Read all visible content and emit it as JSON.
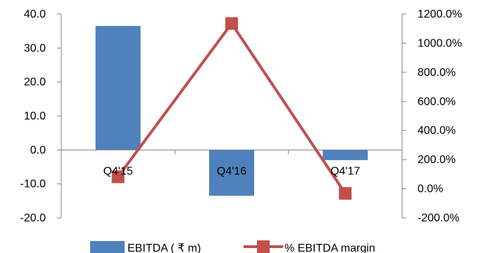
{
  "chart_data": {
    "type": "bar",
    "categories": [
      "Q4'15",
      "Q4'16",
      "Q4'17"
    ],
    "series": [
      {
        "name": "EBITDA ( ₹ m)",
        "type": "bar",
        "axis": "left",
        "values": [
          36.5,
          -13.5,
          -3.0
        ]
      },
      {
        "name": "% EBITDA margin",
        "type": "line",
        "axis": "right",
        "values": [
          82,
          1135,
          -32
        ]
      }
    ],
    "y_left": {
      "ylim": [
        -20,
        40
      ],
      "ticks": [
        "-20.0",
        "-10.0",
        "0.0",
        "10.0",
        "20.0",
        "30.0",
        "40.0"
      ]
    },
    "y_right": {
      "ylim": [
        -200,
        1200
      ],
      "ticks": [
        "-200.0%",
        "0.0%",
        "200.0%",
        "400.0%",
        "600.0%",
        "800.0%",
        "1000.0%",
        "1200.0%"
      ]
    },
    "legend_position": "bottom",
    "grid": false
  },
  "colors": {
    "bar": "#4F81BD",
    "line": "#C0504D",
    "marker": "#C0504D",
    "axis": "#808080"
  }
}
